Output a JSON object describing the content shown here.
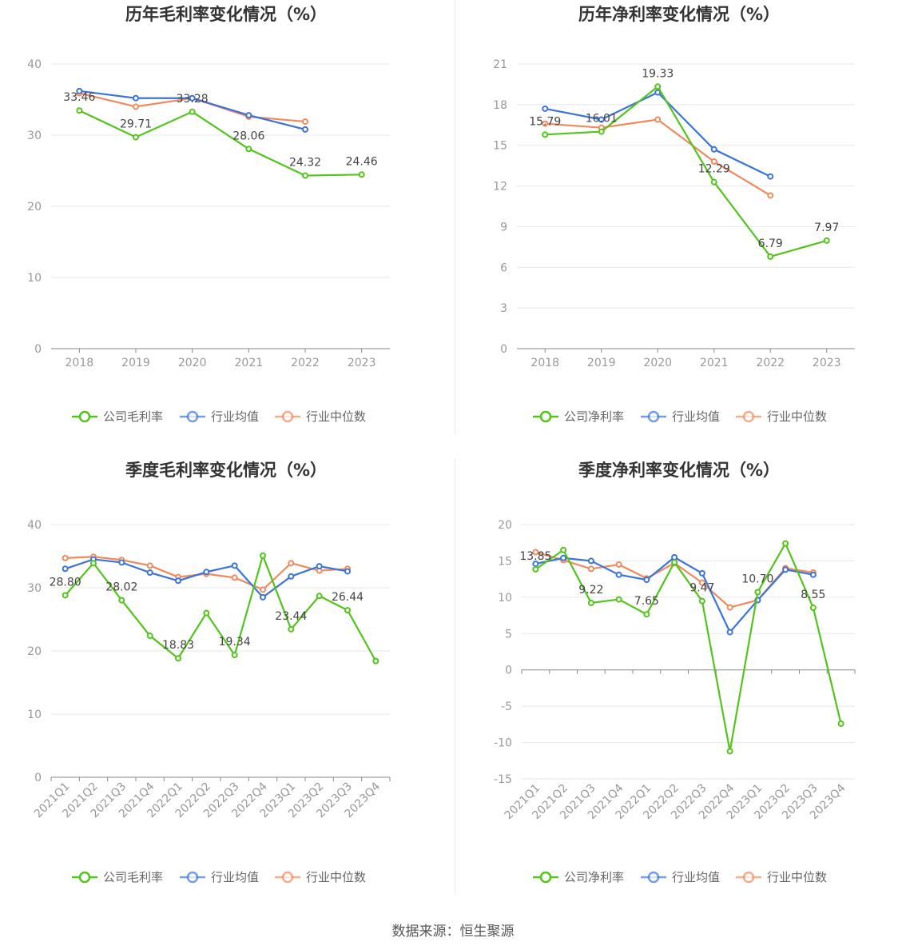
{
  "source_label": "数据来源：恒生聚源",
  "chart_data": [
    {
      "type": "line",
      "title": "历年毛利率变化情况（%）",
      "categories": [
        "2018",
        "2019",
        "2020",
        "2021",
        "2022",
        "2023"
      ],
      "ylim": [
        0,
        40
      ],
      "yticks": [
        0,
        10,
        20,
        30,
        40
      ],
      "xlabel": "",
      "ylabel": "",
      "grid": true,
      "legend_position": "bottom",
      "series": [
        {
          "name": "公司毛利率",
          "color": "#52c41a",
          "values": [
            33.46,
            29.71,
            33.28,
            28.06,
            24.32,
            24.46
          ],
          "labels": [
            "33.46",
            "29.71",
            "33.28",
            "28.06",
            "24.32",
            "24.46"
          ]
        },
        {
          "name": "行业均值",
          "color": "#3b74d9",
          "values": [
            36.2,
            35.2,
            35.2,
            32.8,
            30.8,
            null
          ]
        },
        {
          "name": "行业中位数",
          "color": "#f08a5d",
          "values": [
            35.9,
            34.0,
            35.2,
            32.6,
            31.9,
            null
          ]
        }
      ]
    },
    {
      "type": "line",
      "title": "历年净利率变化情况（%）",
      "categories": [
        "2018",
        "2019",
        "2020",
        "2021",
        "2022",
        "2023"
      ],
      "ylim": [
        0,
        21
      ],
      "yticks": [
        0,
        3,
        6,
        9,
        12,
        15,
        18,
        21
      ],
      "xlabel": "",
      "ylabel": "",
      "grid": true,
      "legend_position": "bottom",
      "series": [
        {
          "name": "公司净利率",
          "color": "#52c41a",
          "values": [
            15.79,
            16.01,
            19.33,
            12.29,
            6.79,
            7.97
          ],
          "labels": [
            "15.79",
            "16.01",
            "19.33",
            "12.29",
            "6.79",
            "7.97"
          ]
        },
        {
          "name": "行业均值",
          "color": "#3b74d9",
          "values": [
            17.7,
            16.9,
            18.9,
            14.7,
            12.7,
            null
          ]
        },
        {
          "name": "行业中位数",
          "color": "#f08a5d",
          "values": [
            16.6,
            16.3,
            16.9,
            13.8,
            11.3,
            null
          ]
        }
      ]
    },
    {
      "type": "line",
      "title": "季度毛利率变化情况（%）",
      "categories": [
        "2021Q1",
        "2021Q2",
        "2021Q3",
        "2021Q4",
        "2022Q1",
        "2022Q2",
        "2022Q3",
        "2022Q4",
        "2023Q1",
        "2023Q2",
        "2023Q3",
        "2023Q4"
      ],
      "ylim": [
        0,
        40
      ],
      "yticks": [
        0,
        10,
        20,
        30,
        40
      ],
      "xlabel": "",
      "ylabel": "",
      "grid": true,
      "legend_position": "bottom",
      "series": [
        {
          "name": "公司毛利率",
          "color": "#52c41a",
          "values": [
            28.8,
            33.9,
            28.02,
            22.4,
            18.83,
            26.0,
            19.34,
            35.1,
            23.44,
            28.7,
            26.44,
            18.4
          ],
          "labels": [
            "28.80",
            "",
            "28.02",
            "",
            "18.83",
            "",
            "19.34",
            "",
            "23.44",
            "",
            "26.44",
            ""
          ]
        },
        {
          "name": "行业均值",
          "color": "#3b74d9",
          "values": [
            33.0,
            34.5,
            34.0,
            32.4,
            31.1,
            32.5,
            33.5,
            28.5,
            31.8,
            33.4,
            32.6,
            null
          ]
        },
        {
          "name": "行业中位数",
          "color": "#f08a5d",
          "values": [
            34.7,
            34.9,
            34.4,
            33.5,
            31.7,
            32.2,
            31.6,
            29.7,
            33.9,
            32.7,
            33.0,
            null
          ]
        }
      ]
    },
    {
      "type": "line",
      "title": "季度净利率变化情况（%）",
      "categories": [
        "2021Q1",
        "2021Q2",
        "2021Q3",
        "2021Q4",
        "2022Q1",
        "2022Q2",
        "2022Q3",
        "2022Q4",
        "2023Q1",
        "2023Q2",
        "2023Q3",
        "2023Q4"
      ],
      "ylim": [
        -15,
        20
      ],
      "yticks": [
        -15,
        -10,
        -5,
        0,
        5,
        10,
        15,
        20
      ],
      "xlabel": "",
      "ylabel": "",
      "grid": true,
      "legend_position": "bottom",
      "series": [
        {
          "name": "公司净利率",
          "color": "#52c41a",
          "values": [
            13.85,
            16.5,
            9.22,
            9.7,
            7.65,
            14.8,
            9.47,
            -11.2,
            10.7,
            17.4,
            8.55,
            -7.4
          ],
          "labels": [
            "13.85",
            "",
            "9.22",
            "",
            "7.65",
            "",
            "9.47",
            "",
            "10.70",
            "",
            "8.55",
            ""
          ]
        },
        {
          "name": "行业均值",
          "color": "#3b74d9",
          "values": [
            14.6,
            15.4,
            15.0,
            13.1,
            12.4,
            15.5,
            13.3,
            5.2,
            9.6,
            13.8,
            13.1,
            null
          ]
        },
        {
          "name": "行业中位数",
          "color": "#f08a5d",
          "values": [
            16.2,
            15.1,
            13.9,
            14.5,
            12.6,
            14.7,
            12.0,
            8.6,
            9.6,
            14.0,
            13.4,
            null
          ]
        }
      ]
    }
  ]
}
